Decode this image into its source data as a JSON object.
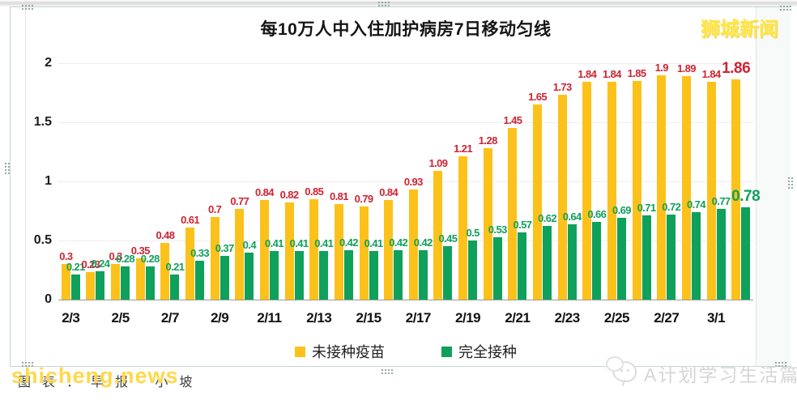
{
  "header": {
    "site_badge": "狮城新闻"
  },
  "chart_data": {
    "type": "bar",
    "title": "每10万人中入住加护病房7日移动匀线",
    "categories": [
      "2/3",
      "2/4",
      "2/5",
      "2/6",
      "2/7",
      "2/8",
      "2/9",
      "2/10",
      "2/11",
      "2/12",
      "2/13",
      "2/14",
      "2/15",
      "2/16",
      "2/17",
      "2/18",
      "2/19",
      "2/20",
      "2/21",
      "2/22",
      "2/23",
      "2/24",
      "2/25",
      "2/26",
      "2/27",
      "2/28",
      "3/1",
      "3/2"
    ],
    "x_tick_labels": [
      "2/3",
      "2/5",
      "2/7",
      "2/9",
      "2/11",
      "2/13",
      "2/15",
      "2/17",
      "2/19",
      "2/21",
      "2/23",
      "2/25",
      "2/27",
      "3/1"
    ],
    "series": [
      {
        "name": "未接种疫苗",
        "color": "#FCC21B",
        "label_color": "#CE2433",
        "values": [
          0.3,
          0.23,
          0.3,
          0.35,
          0.48,
          0.61,
          0.7,
          0.77,
          0.84,
          0.82,
          0.85,
          0.81,
          0.79,
          0.84,
          0.93,
          1.09,
          1.21,
          1.28,
          1.45,
          1.65,
          1.73,
          1.84,
          1.84,
          1.85,
          1.9,
          1.89,
          1.84,
          1.86
        ],
        "labels": [
          "0.3",
          "0.23",
          "0.3",
          "0.35",
          "0.48",
          "0.61",
          "0.7",
          "0.77",
          "0.84",
          "0.82",
          "0.85",
          "0.81",
          "0.79",
          "0.84",
          "0.93",
          "1.09",
          "1.21",
          "1.28",
          "1.45",
          "1.65",
          "1.73",
          "1.84",
          "1.84",
          "1.85",
          "1.9",
          "1.89",
          "1.84",
          "1.86"
        ]
      },
      {
        "name": "完全接种",
        "color": "#0FA05C",
        "label_color": "#12A05E",
        "values": [
          0.21,
          0.24,
          0.28,
          0.28,
          0.21,
          0.33,
          0.37,
          0.4,
          0.41,
          0.41,
          0.41,
          0.42,
          0.41,
          0.42,
          0.42,
          0.45,
          0.5,
          0.53,
          0.57,
          0.62,
          0.64,
          0.66,
          0.69,
          0.71,
          0.72,
          0.74,
          0.77,
          0.78
        ],
        "labels": [
          "0.21",
          "0.24",
          "0.28",
          "0.28",
          "0.21",
          "0.33",
          "0.37",
          "0.4",
          "0.41",
          "0.41",
          "0.41",
          "0.42",
          "0.41",
          "0.42",
          "0.42",
          "0.45",
          "0.5",
          "0.53",
          "0.57",
          "0.62",
          "0.64",
          "0.66",
          "0.69",
          "0.71",
          "0.72",
          "0.74",
          "0.77",
          "0.78"
        ]
      }
    ],
    "ylim": [
      0,
      2
    ],
    "yticks": [
      "0",
      "0.5",
      "1",
      "1.5",
      "2"
    ],
    "grid": true,
    "legend_position": "bottom"
  },
  "legend": {
    "items": [
      {
        "label": "未接种疫苗",
        "color": "#FCC21B"
      },
      {
        "label": "完全接种",
        "color": "#0FA05C"
      }
    ]
  },
  "watermarks": {
    "front": "shicheng.news",
    "back": "图表：早报·小坡",
    "publisher": "A计划学习生活篇"
  }
}
